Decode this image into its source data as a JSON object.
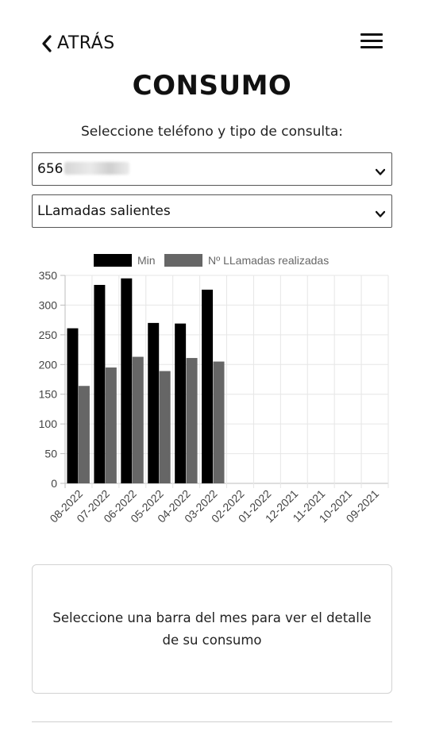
{
  "header": {
    "back_label": "ATRÁS",
    "back_icon": "chevron-left-icon",
    "menu_icon": "hamburger-menu-icon"
  },
  "page": {
    "title": "CONSUMO",
    "subtitle": "Seleccione teléfono y tipo de consulta:"
  },
  "selects": {
    "phone_value_visible": "656",
    "type_value": "LLamadas salientes"
  },
  "chart_data": {
    "type": "bar",
    "categories": [
      "08-2022",
      "07-2022",
      "06-2022",
      "05-2022",
      "04-2022",
      "03-2022",
      "02-2022",
      "01-2022",
      "12-2021",
      "11-2021",
      "10-2021",
      "09-2021"
    ],
    "series": [
      {
        "name": "Min",
        "color": "#000000",
        "values": [
          261,
          334,
          345,
          270,
          269,
          326,
          null,
          null,
          null,
          null,
          null,
          null
        ]
      },
      {
        "name": "Nº LLamadas realizadas",
        "color": "#666666",
        "values": [
          164,
          195,
          213,
          189,
          211,
          205,
          null,
          null,
          null,
          null,
          null,
          null
        ]
      }
    ],
    "ylim": [
      0,
      350
    ],
    "yticks": [
      0,
      50,
      100,
      150,
      200,
      250,
      300,
      350
    ],
    "grid": true,
    "legend": "top"
  },
  "info_box": {
    "text": "Seleccione una barra del mes para ver el detalle de su consumo"
  }
}
